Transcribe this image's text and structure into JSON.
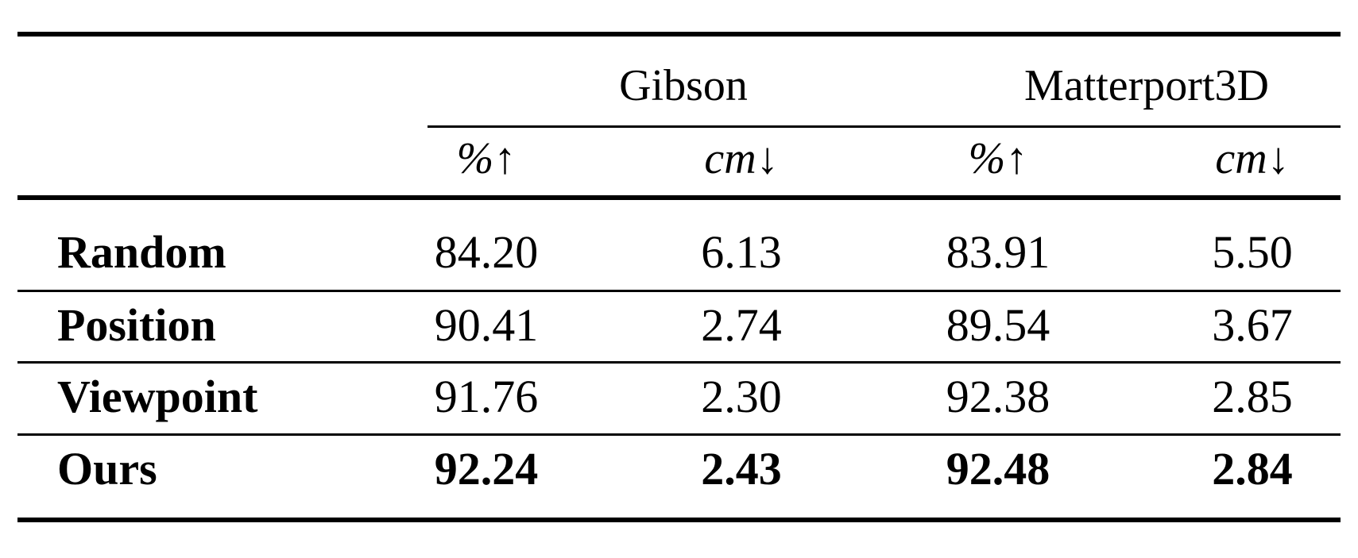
{
  "table": {
    "groups": [
      "Gibson",
      "Matterport3D"
    ],
    "metrics": [
      {
        "unit": "%",
        "arrow": "↑"
      },
      {
        "unit": "cm",
        "arrow": "↓"
      },
      {
        "unit": "%",
        "arrow": "↑"
      },
      {
        "unit": "cm",
        "arrow": "↓"
      }
    ],
    "rows": [
      {
        "label": "Random",
        "values": [
          "84.20",
          "6.13",
          "83.91",
          "5.50"
        ],
        "bold": false
      },
      {
        "label": "Position",
        "values": [
          "90.41",
          "2.74",
          "89.54",
          "3.67"
        ],
        "bold": false
      },
      {
        "label": "Viewpoint",
        "values": [
          "91.76",
          "2.30",
          "92.38",
          "2.85"
        ],
        "bold": false
      },
      {
        "label": "Ours",
        "values": [
          "92.24",
          "2.43",
          "92.48",
          "2.84"
        ],
        "bold": true
      }
    ]
  }
}
